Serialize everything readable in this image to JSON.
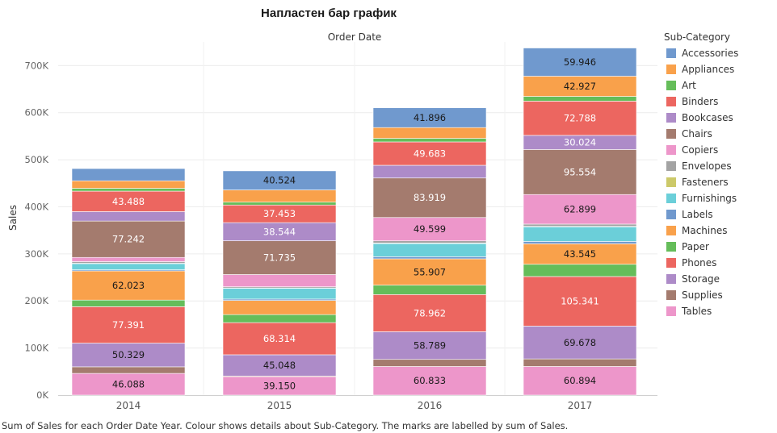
{
  "chart_data": {
    "type": "bar",
    "stacked": true,
    "title": "Напластен бар график",
    "x_header": "Order Date",
    "ylabel": "Sales",
    "categories": [
      "2014",
      "2015",
      "2016",
      "2017"
    ],
    "ylim": [
      0,
      740000
    ],
    "yticks": [
      0,
      100000,
      200000,
      300000,
      400000,
      500000,
      600000,
      700000
    ],
    "ytick_labels": [
      "0K",
      "100K",
      "200K",
      "300K",
      "400K",
      "500K",
      "600K",
      "700K"
    ],
    "grid": true,
    "legend_title": "Sub-Category",
    "legend_position": "right",
    "caption": "Sum of Sales for each Order Date Year. Colour shows details about Sub-Category. The marks are labelled by sum of Sales.",
    "series": [
      {
        "name": "Tables",
        "color": "#ED96CA",
        "values": [
          46088,
          39150,
          60833,
          60894
        ],
        "labels": [
          "46.088",
          "39.150",
          "60.833",
          "60.894"
        ]
      },
      {
        "name": "Supplies",
        "color": "#A47B6E",
        "values": [
          14000,
          1500,
          15000,
          16000
        ],
        "labels": [
          "",
          "",
          "",
          ""
        ]
      },
      {
        "name": "Storage",
        "color": "#AD8BC8",
        "values": [
          50329,
          45048,
          58789,
          69678
        ],
        "labels": [
          "50.329",
          "45.048",
          "58.789",
          "69.678"
        ]
      },
      {
        "name": "Phones",
        "color": "#EC6660",
        "values": [
          77391,
          68314,
          78962,
          105341
        ],
        "labels": [
          "77.391",
          "68.314",
          "78.962",
          "105.341"
        ]
      },
      {
        "name": "Paper",
        "color": "#65BD5A",
        "values": [
          14000,
          17000,
          20000,
          26000
        ],
        "labels": [
          "",
          "",
          "",
          ""
        ]
      },
      {
        "name": "Machines",
        "color": "#F9A14B",
        "values": [
          62023,
          30000,
          55907,
          43545
        ],
        "labels": [
          "62.023",
          "",
          "55.907",
          "43.545"
        ]
      },
      {
        "name": "Labels",
        "color": "#7099CE",
        "values": [
          2500,
          3000,
          4500,
          5000
        ],
        "labels": [
          "",
          "",
          "",
          ""
        ]
      },
      {
        "name": "Furnishings",
        "color": "#6BCFD9",
        "values": [
          13000,
          23000,
          28000,
          31000
        ],
        "labels": [
          "",
          "",
          "",
          ""
        ]
      },
      {
        "name": "Fasteners",
        "color": "#CCC969",
        "values": [
          700,
          600,
          1000,
          1000
        ],
        "labels": [
          "",
          "",
          "",
          ""
        ]
      },
      {
        "name": "Envelopes",
        "color": "#A3A3A3",
        "values": [
          3500,
          2500,
          4700,
          4800
        ],
        "labels": [
          "",
          "",
          "",
          ""
        ]
      },
      {
        "name": "Copiers",
        "color": "#ED96CA",
        "values": [
          9000,
          26000,
          49599,
          62899
        ],
        "labels": [
          "",
          "",
          "49.599",
          "62.899"
        ]
      },
      {
        "name": "Chairs",
        "color": "#A47B6E",
        "values": [
          77242,
          71735,
          83919,
          95554
        ],
        "labels": [
          "77.242",
          "71.735",
          "83.919",
          "95.554"
        ]
      },
      {
        "name": "Bookcases",
        "color": "#AD8BC8",
        "values": [
          20000,
          38544,
          27000,
          30024
        ],
        "labels": [
          "",
          "38.544",
          "",
          "30.024"
        ]
      },
      {
        "name": "Binders",
        "color": "#EC6660",
        "values": [
          43488,
          37453,
          49683,
          72788
        ],
        "labels": [
          "43.488",
          "37.453",
          "49.683",
          "72.788"
        ]
      },
      {
        "name": "Art",
        "color": "#65BD5A",
        "values": [
          6000,
          6000,
          7500,
          10000
        ],
        "labels": [
          "",
          "",
          "",
          ""
        ]
      },
      {
        "name": "Appliances",
        "color": "#F9A14B",
        "values": [
          16000,
          26000,
          23000,
          42927
        ],
        "labels": [
          "",
          "",
          "",
          "42.927"
        ]
      },
      {
        "name": "Accessories",
        "color": "#7099CE",
        "values": [
          26000,
          40524,
          41896,
          59946
        ],
        "labels": [
          "",
          "40.524",
          "41.896",
          "59.946"
        ]
      }
    ],
    "legend_order": [
      "Accessories",
      "Appliances",
      "Art",
      "Binders",
      "Bookcases",
      "Chairs",
      "Copiers",
      "Envelopes",
      "Fasteners",
      "Furnishings",
      "Labels",
      "Machines",
      "Paper",
      "Phones",
      "Storage",
      "Supplies",
      "Tables"
    ],
    "white_label_series": [
      "Phones",
      "Chairs",
      "Binders",
      "Bookcases",
      "Supplies"
    ]
  }
}
